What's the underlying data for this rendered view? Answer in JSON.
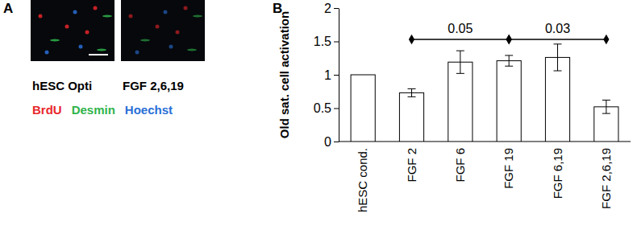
{
  "chart_data": {
    "type": "bar",
    "y_label": "Old sat. cell activation",
    "categories": [
      "hESC cond.",
      "FGF 2",
      "FGF 6",
      "FGF 19",
      "FGF 6,19",
      "FGF 2,6,19"
    ],
    "values": [
      1.0,
      0.73,
      1.19,
      1.21,
      1.26,
      0.52
    ],
    "errors": [
      null,
      0.06,
      0.17,
      0.08,
      0.2,
      0.1
    ],
    "color": "#ffffff",
    "ylim": [
      0,
      2
    ],
    "yticks": [
      0,
      0.5,
      1,
      1.5,
      2
    ],
    "grid": false,
    "annotations": [
      {
        "text": "0.05",
        "from": "FGF 2",
        "to": "FGF 19"
      },
      {
        "text": "0.03",
        "from": "FGF 19",
        "to": "FGF 2,6,19"
      }
    ]
  },
  "figure": {
    "panel_labels": [
      "A",
      "B"
    ],
    "image_captions": [
      "hESC Opti",
      "FGF 2,6,19"
    ],
    "stains": [
      {
        "name": "BrdU",
        "color": "#e8262a"
      },
      {
        "name": "Desmin",
        "color": "#2fb34a"
      },
      {
        "name": "Hoechst",
        "color": "#2a6fd6"
      }
    ]
  }
}
